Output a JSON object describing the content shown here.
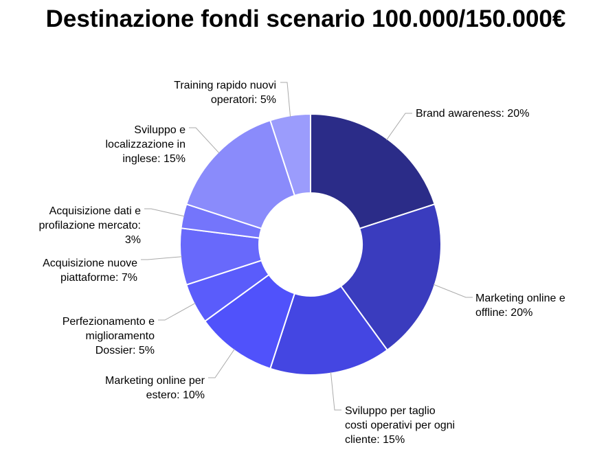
{
  "chart_data": {
    "type": "pie",
    "title": "Destinazione fondi scenario 100.000/150.000€",
    "categories": [
      "Brand awareness: 20%",
      "Marketing online e\noffline: 20%",
      "Sviluppo per taglio\ncosti operativi per ogni\ncliente: 15%",
      "Marketing online per\nestero: 10%",
      "Perfezionamento e\nmiglioramento\nDossier: 5%",
      "Acquisizione nuove\npiattaforme: 7%",
      "Acquisizione dati e\nprofilazione mercato:\n3%",
      "Sviluppo e\nlocalizzazione in\ninglese: 15%",
      "Training rapido nuovi\noperatori: 5%"
    ],
    "values": [
      20,
      20,
      15,
      10,
      5,
      7,
      3,
      15,
      5
    ],
    "colors": [
      "#2b2c88",
      "#3a3cbe",
      "#4446e2",
      "#5052fb",
      "#5a5cfb",
      "#6869fb",
      "#7475fb",
      "#8a8bfb",
      "#9b9cfc"
    ]
  }
}
